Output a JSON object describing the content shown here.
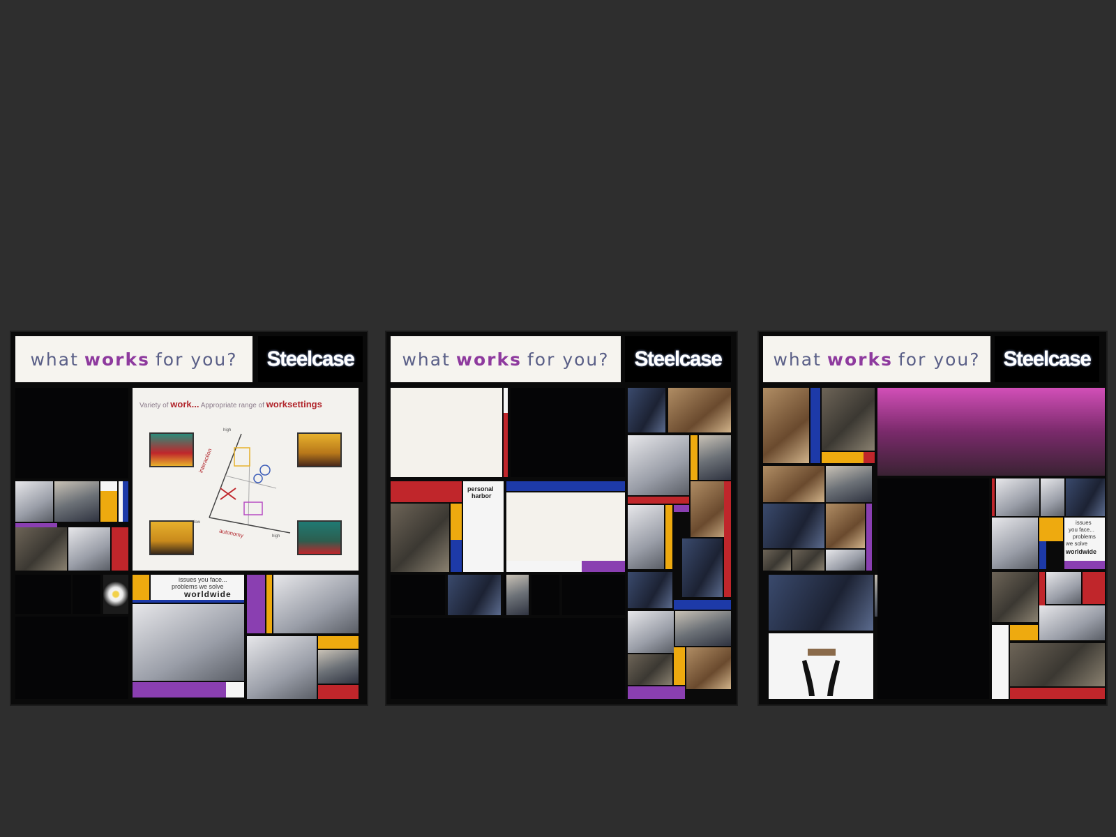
{
  "panels": [
    {
      "slogan_pre": "what",
      "slogan_em": "works",
      "slogan_post": "for you?",
      "logo": "Steelcase"
    },
    {
      "slogan_pre": "what",
      "slogan_em": "works",
      "slogan_post": "for you?",
      "logo": "Steelcase"
    },
    {
      "slogan_pre": "what",
      "slogan_em": "works",
      "slogan_post": "for you?",
      "logo": "Steelcase"
    }
  ],
  "diagram": {
    "title_a": "Variety of",
    "title_b": "work...",
    "title_c": "Appropriate range of",
    "title_d": "worksettings",
    "axis_y": "interaction",
    "axis_x": "autonomy",
    "high_y": "high",
    "high_x": "high",
    "low": "low"
  },
  "callouts": {
    "issues_1": "issues you face...",
    "issues_2": "problems we solve",
    "worldwide": "worldwide",
    "harbor_1": "personal",
    "harbor_2": "harbor",
    "issues_r1": "issues",
    "issues_r2": "you face...",
    "issues_r3": "problems",
    "issues_r4": "we solve",
    "worldwide_r": "worldwide"
  },
  "colors": {
    "background": "#2e2e2e",
    "slogan": "#5a5f87",
    "accent_purple": "#8e3a9e",
    "red": "#c0262b",
    "yellow": "#eeaa0f",
    "blue": "#1d3aa8",
    "purple": "#8a3fb1"
  }
}
